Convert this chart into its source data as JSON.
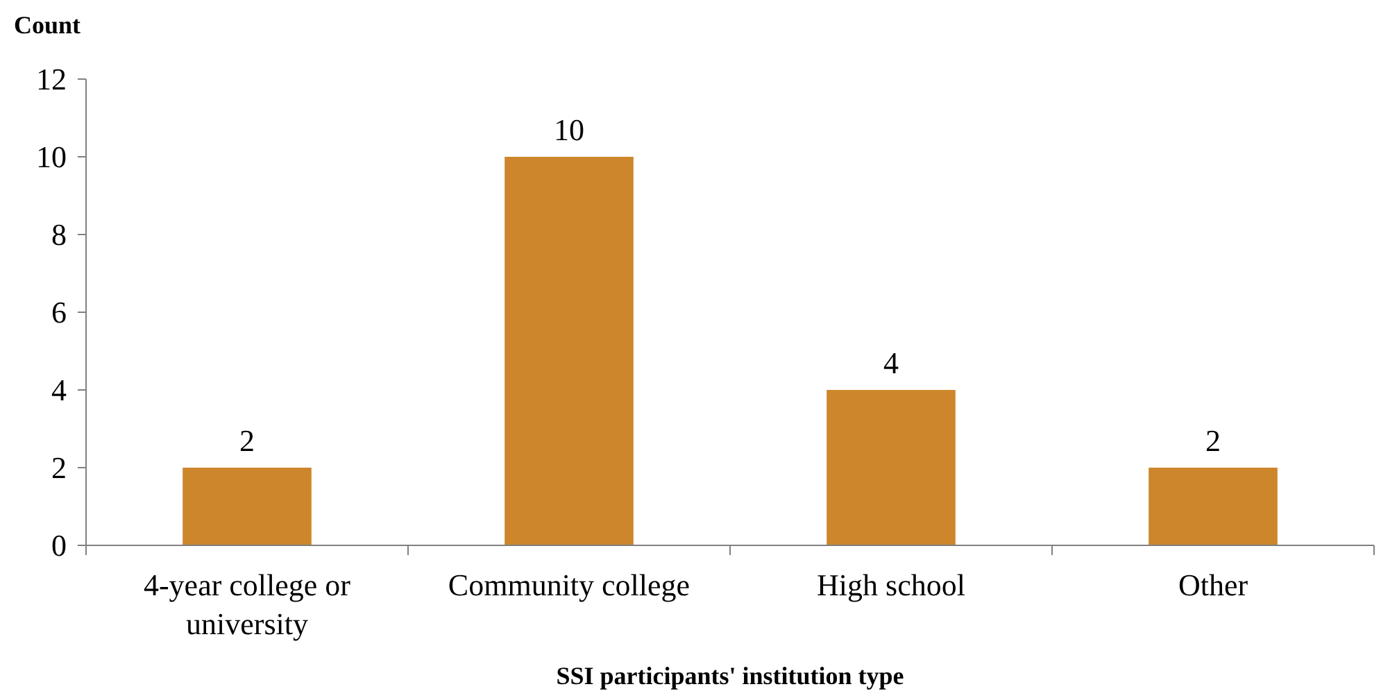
{
  "chart_data": {
    "type": "bar",
    "ylabel": "Count",
    "xlabel": "SSI participants' institution type",
    "categories": [
      "4-year college or university",
      "Community college",
      "High school",
      "Other"
    ],
    "values": [
      2,
      10,
      4,
      2
    ],
    "color": "#cd862b",
    "ylim": [
      0,
      12
    ],
    "yticks": [
      0,
      2,
      4,
      6,
      8,
      10,
      12
    ],
    "data_labels": true
  }
}
